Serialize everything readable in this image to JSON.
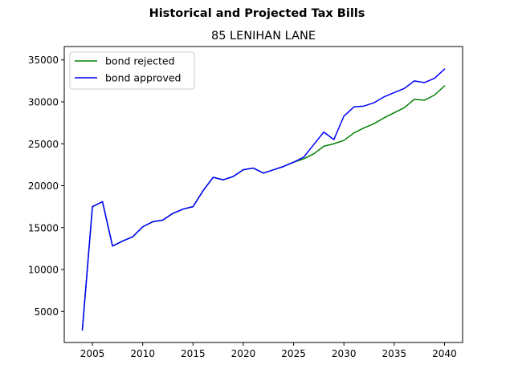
{
  "chart_data": {
    "type": "line",
    "suptitle": "Historical and Projected Tax Bills",
    "title": "85 LENIHAN LANE",
    "xlabel": "",
    "ylabel": "",
    "xlim": [
      2002.2,
      2041.8
    ],
    "ylim": [
      1300,
      36600
    ],
    "xticks": [
      2005,
      2010,
      2015,
      2020,
      2025,
      2030,
      2035,
      2040
    ],
    "yticks": [
      5000,
      10000,
      15000,
      20000,
      25000,
      30000,
      35000
    ],
    "grid": false,
    "legend_position": "top-left",
    "x": [
      2004,
      2005,
      2006,
      2007,
      2008,
      2009,
      2010,
      2011,
      2012,
      2013,
      2014,
      2015,
      2016,
      2017,
      2018,
      2019,
      2020,
      2021,
      2022,
      2023,
      2024,
      2025,
      2026,
      2027,
      2028,
      2029,
      2030,
      2031,
      2032,
      2033,
      2034,
      2035,
      2036,
      2037,
      2038,
      2039,
      2040
    ],
    "series": [
      {
        "name": "bond rejected",
        "color": "#008000",
        "values": [
          2800,
          17500,
          18100,
          12800,
          13400,
          13900,
          15100,
          15700,
          15900,
          16700,
          17200,
          17500,
          19400,
          21000,
          20700,
          21100,
          21900,
          22100,
          21500,
          21900,
          22300,
          22800,
          23200,
          23800,
          24700,
          25000,
          25400,
          26300,
          26900,
          27400,
          28100,
          28700,
          29300,
          30300,
          30200,
          30800,
          31900
        ]
      },
      {
        "name": "bond approved",
        "color": "#0000ff",
        "values": [
          2800,
          17500,
          18100,
          12800,
          13400,
          13900,
          15100,
          15700,
          15900,
          16700,
          17200,
          17500,
          19400,
          21000,
          20700,
          21100,
          21900,
          22100,
          21500,
          21900,
          22300,
          22800,
          23400,
          24900,
          26400,
          25500,
          28300,
          29400,
          29500,
          29900,
          30600,
          31100,
          31600,
          32500,
          32300,
          32800,
          33900
        ]
      }
    ]
  }
}
